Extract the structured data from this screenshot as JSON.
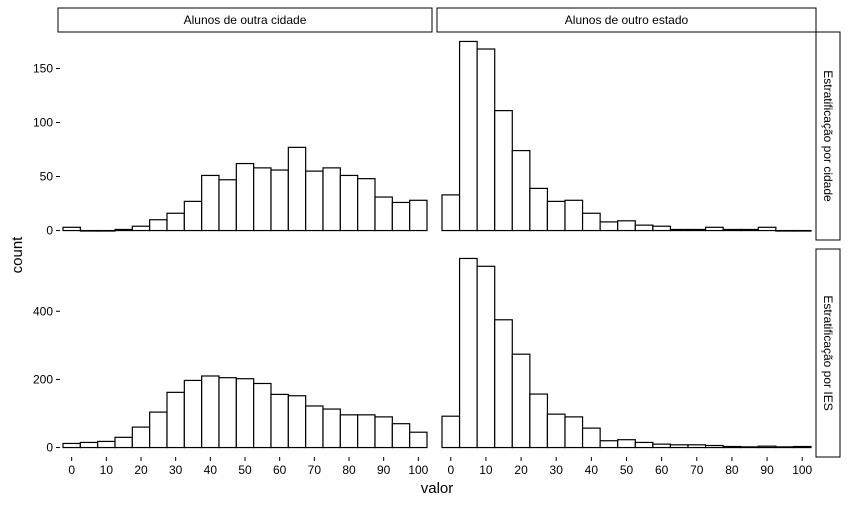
{
  "chart_data": {
    "type": "bar",
    "xlabel": "valor",
    "ylabel": "count",
    "columns": [
      "Alunos de outra cidade",
      "Alunos de outro estado"
    ],
    "rows": [
      "Estratificação por cidade",
      "Estratificação por IES"
    ],
    "xlim": [
      -2.5,
      102.5
    ],
    "x_ticks": [
      0,
      10,
      20,
      30,
      40,
      50,
      60,
      70,
      80,
      90,
      100
    ],
    "x_tick_labels": [
      "0",
      "10",
      "20",
      "30",
      "40",
      "50",
      "60",
      "70",
      "80",
      "90",
      "100"
    ],
    "bin_width": 5,
    "bin_centers": [
      0,
      5,
      10,
      15,
      20,
      25,
      30,
      35,
      40,
      45,
      50,
      55,
      60,
      65,
      70,
      75,
      80,
      85,
      90,
      95,
      100
    ],
    "grid": false,
    "fill": "#ffffff",
    "stroke": "#000000",
    "panels": [
      {
        "row": 0,
        "col": 0,
        "values": [
          3,
          0,
          0,
          1,
          4,
          10,
          16,
          27,
          51,
          47,
          62,
          58,
          56,
          77,
          55,
          58,
          51,
          48,
          31,
          26,
          28
        ]
      },
      {
        "row": 0,
        "col": 1,
        "values": [
          33,
          175,
          168,
          111,
          74,
          39,
          27,
          28,
          16,
          8,
          9,
          5,
          4,
          1,
          1,
          3,
          1,
          1,
          3,
          0,
          0
        ]
      },
      {
        "row": 1,
        "col": 0,
        "values": [
          12,
          15,
          18,
          30,
          60,
          104,
          162,
          197,
          210,
          205,
          202,
          188,
          156,
          152,
          122,
          113,
          96,
          96,
          90,
          70,
          45
        ]
      },
      {
        "row": 1,
        "col": 1,
        "values": [
          92,
          555,
          532,
          375,
          274,
          157,
          98,
          90,
          57,
          20,
          23,
          15,
          10,
          8,
          8,
          6,
          3,
          2,
          4,
          2,
          3
        ]
      }
    ],
    "y_axes": [
      {
        "row": 0,
        "ylim": [
          -8.75,
          183.75
        ],
        "ticks": [
          0,
          50,
          100,
          150
        ],
        "tick_labels": [
          "0",
          "50",
          "100",
          "150"
        ]
      },
      {
        "row": 1,
        "ylim": [
          -27.75,
          582.75
        ],
        "ticks": [
          0,
          200,
          400
        ],
        "tick_labels": [
          "0",
          "200",
          "400"
        ]
      }
    ]
  }
}
